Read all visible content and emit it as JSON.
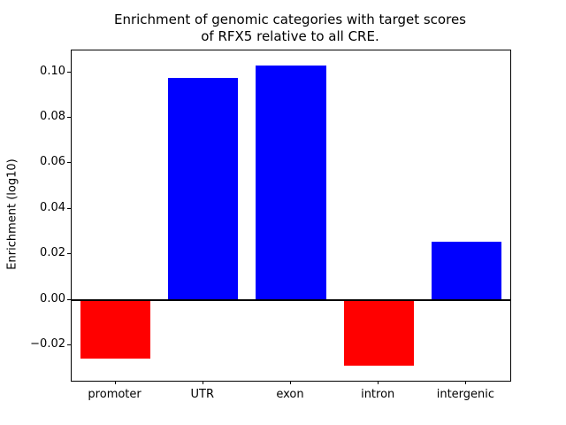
{
  "chart_data": {
    "type": "bar",
    "title_lines": [
      "Enrichment of genomic categories with target scores",
      "of RFX5 relative to all CRE."
    ],
    "ylabel": "Enrichment (log10)",
    "xlabel": "",
    "categories": [
      "promoter",
      "UTR",
      "exon",
      "intron",
      "intergenic"
    ],
    "values": [
      -0.026,
      0.0975,
      0.103,
      -0.029,
      0.0255
    ],
    "bar_colors": [
      "#ff0000",
      "#0000ff",
      "#0000ff",
      "#ff0000",
      "#0000ff"
    ],
    "positive_color": "#0000ff",
    "negative_color": "#ff0000",
    "ylim": [
      -0.0356,
      0.1096
    ],
    "ytick_values": [
      -0.02,
      0.0,
      0.02,
      0.04,
      0.06,
      0.08,
      0.1
    ],
    "ytick_labels": [
      "−0.02",
      "0.00",
      "0.02",
      "0.04",
      "0.06",
      "0.08",
      "0.10"
    ],
    "zero_line": true,
    "grid": false,
    "legend": "none",
    "bar_width_fraction": 0.8
  }
}
